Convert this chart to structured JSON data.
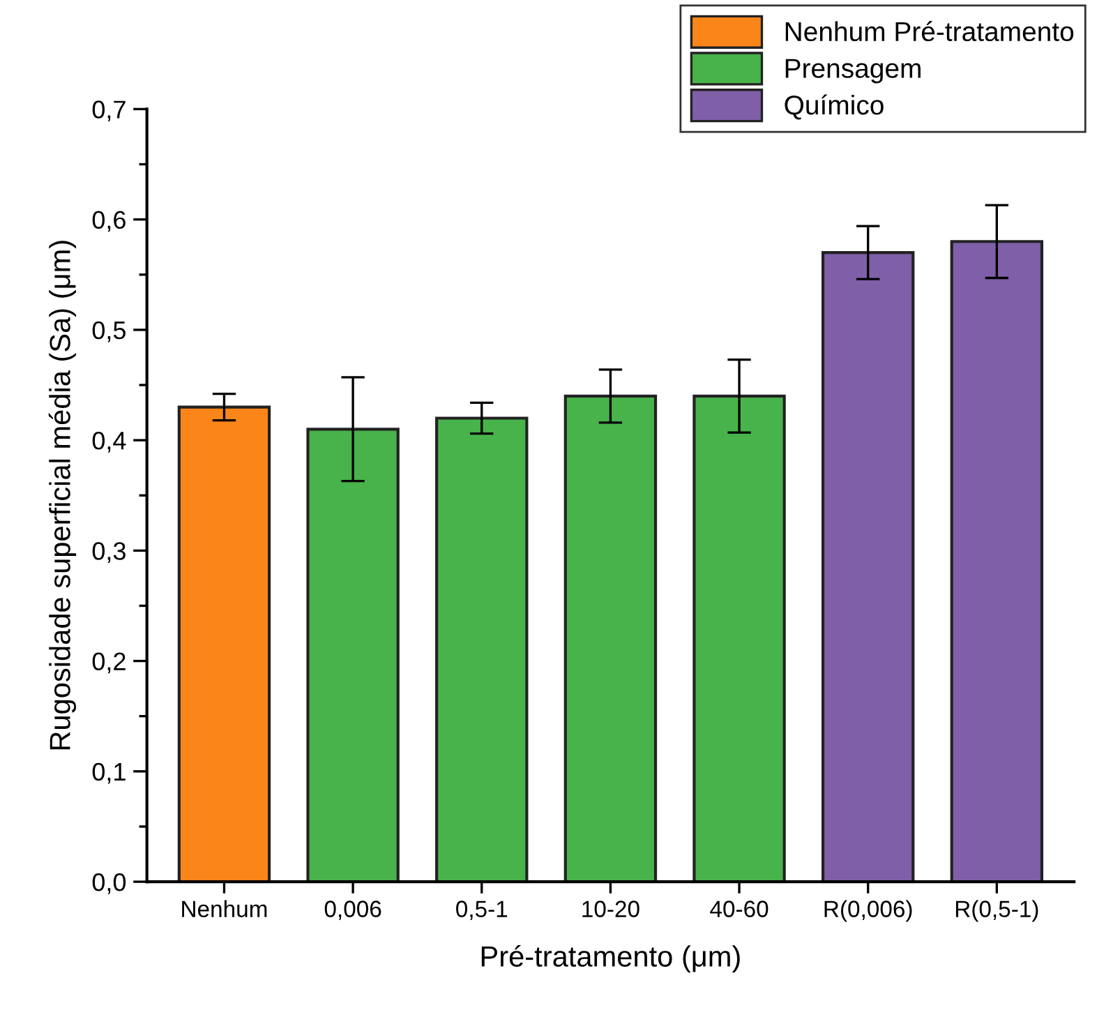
{
  "chart_data": {
    "type": "bar",
    "xlabel": "Pré-tratamento (μm)",
    "ylabel": "Rugosidade superficial média (Sa) (μm)",
    "categories": [
      "Nenhum",
      "0,006",
      "0,5-1",
      "10-20",
      "40-60",
      "R(0,006)",
      "R(0,5-1)"
    ],
    "series": [
      {
        "name": "Nenhum Pré-tratamento",
        "color": "#fa8519",
        "values": [
          0.43,
          null,
          null,
          null,
          null,
          null,
          null
        ],
        "errors": [
          0.012,
          null,
          null,
          null,
          null,
          null,
          null
        ]
      },
      {
        "name": "Prensagem",
        "color": "#48b34a",
        "values": [
          null,
          0.41,
          0.42,
          0.44,
          0.44,
          null,
          null
        ],
        "errors": [
          null,
          0.047,
          0.014,
          0.024,
          0.033,
          null,
          null
        ]
      },
      {
        "name": "Químico",
        "color": "#805fa9",
        "values": [
          null,
          null,
          null,
          null,
          null,
          0.57,
          0.58
        ],
        "errors": [
          null,
          null,
          null,
          null,
          null,
          0.024,
          0.033
        ]
      }
    ],
    "ylim": [
      0,
      0.7
    ],
    "yticks": [
      {
        "value": 0,
        "label": "0,0"
      },
      {
        "value": 0.05,
        "label": null
      },
      {
        "value": 0.1,
        "label": "0,1"
      },
      {
        "value": 0.15,
        "label": null
      },
      {
        "value": 0.2,
        "label": "0,2"
      },
      {
        "value": 0.25,
        "label": null
      },
      {
        "value": 0.3,
        "label": "0,3"
      },
      {
        "value": 0.35,
        "label": null
      },
      {
        "value": 0.4,
        "label": "0,4"
      },
      {
        "value": 0.45,
        "label": null
      },
      {
        "value": 0.5,
        "label": "0,5"
      },
      {
        "value": 0.55,
        "label": null
      },
      {
        "value": 0.6,
        "label": "0,6"
      },
      {
        "value": 0.65,
        "label": null
      },
      {
        "value": 0.7,
        "label": "0,7"
      }
    ],
    "grid": false,
    "legend": "top right"
  }
}
